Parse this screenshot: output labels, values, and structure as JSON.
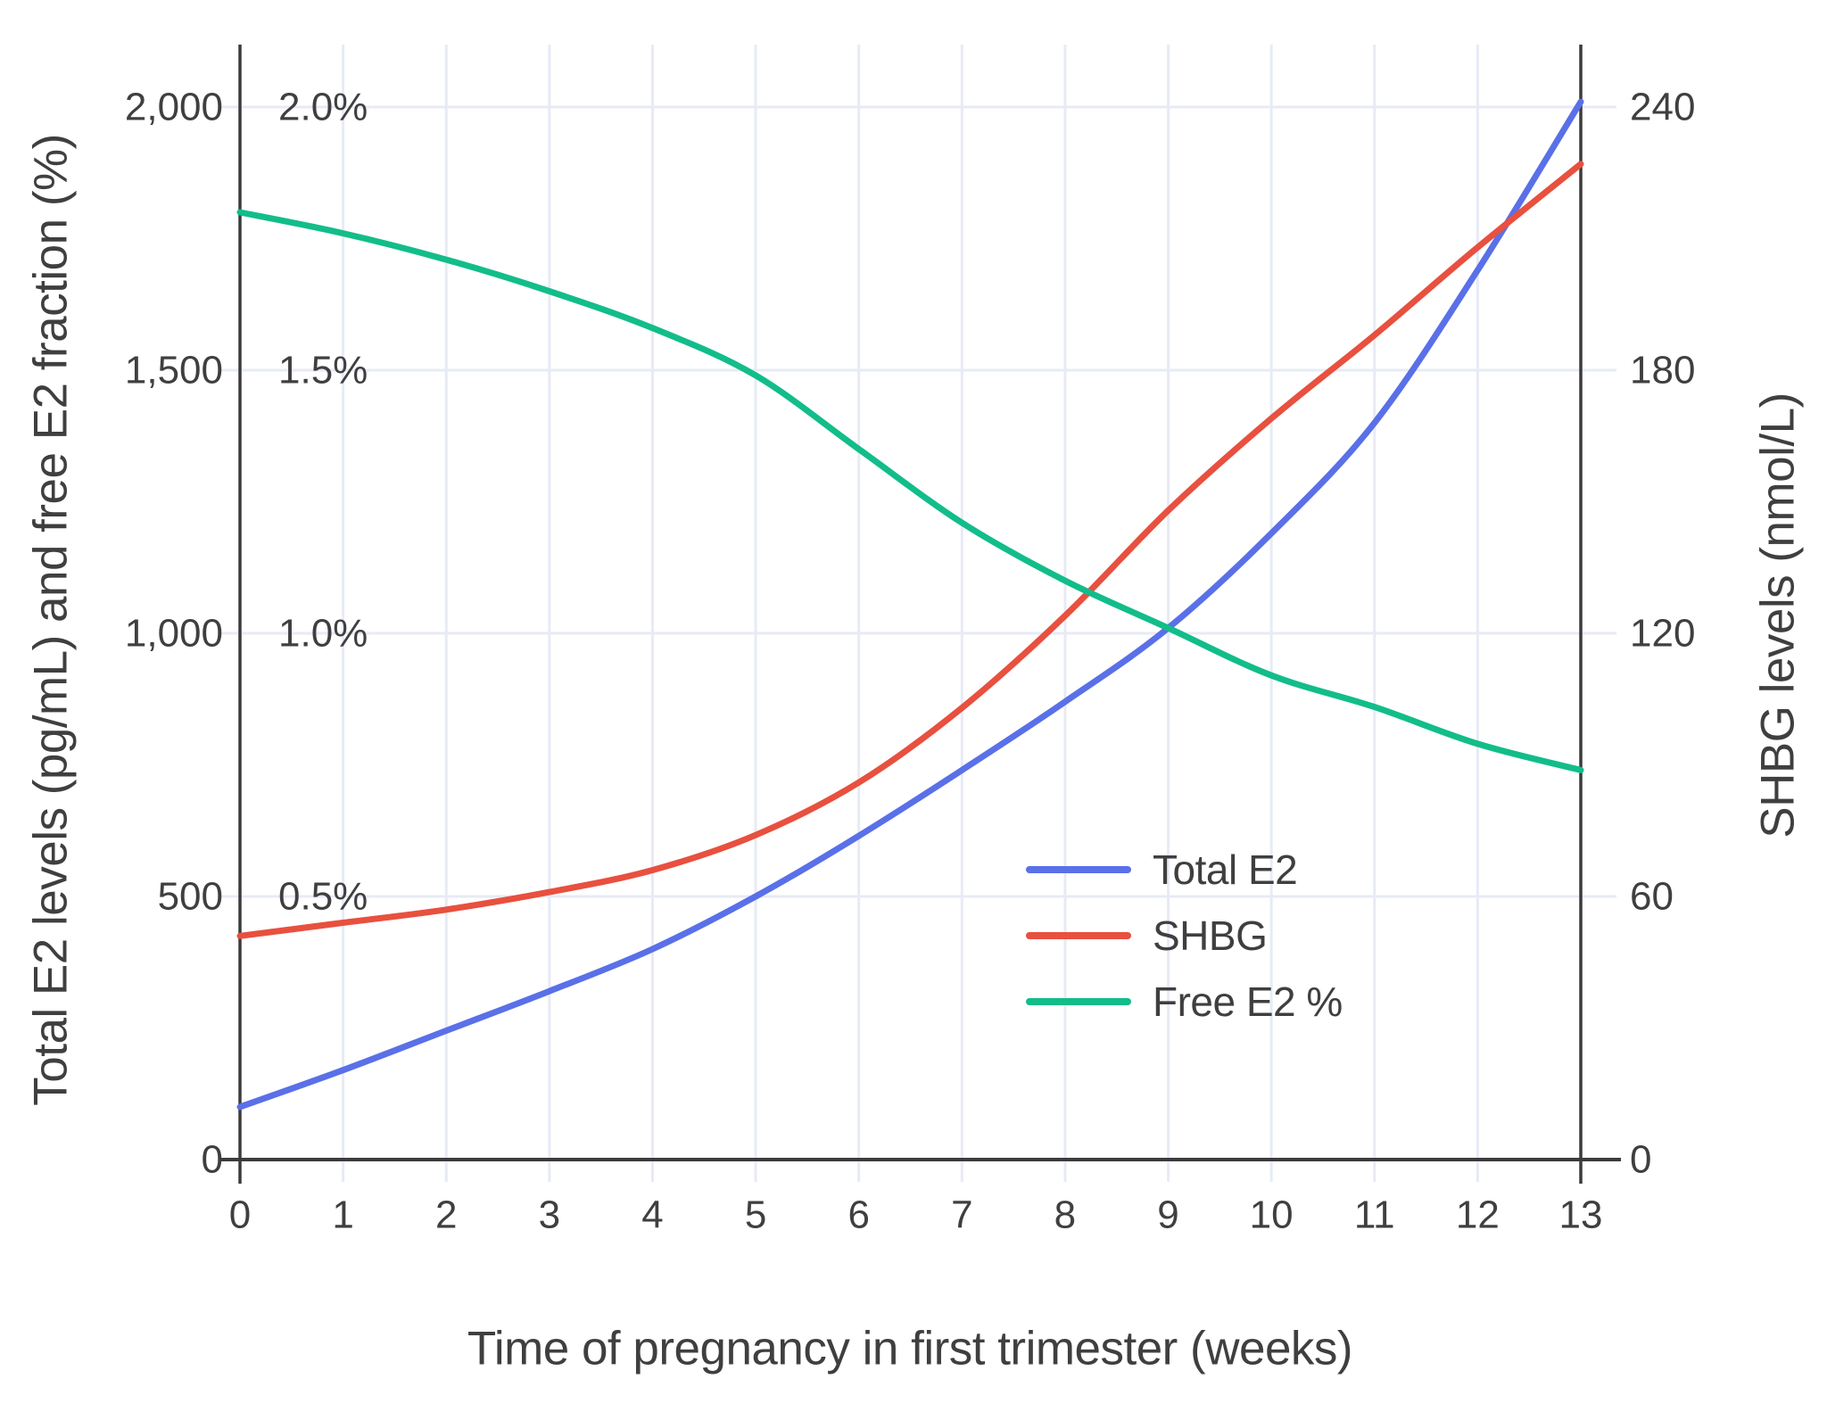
{
  "chart_data": {
    "type": "line",
    "title": "",
    "xlabel": "Time of pregnancy in first trimester (weeks)",
    "ylabel_left": "Total E2 levels (pg/mL) and free E2 fraction (%)",
    "ylabel_right": "SHBG levels (nmol/L)",
    "x": [
      0,
      1,
      2,
      3,
      4,
      5,
      6,
      7,
      8,
      9,
      10,
      11,
      12,
      13
    ],
    "x_tick_labels": [
      "0",
      "1",
      "2",
      "3",
      "4",
      "5",
      "6",
      "7",
      "8",
      "9",
      "10",
      "11",
      "12",
      "13"
    ],
    "left_axis": {
      "range": [
        0,
        2000
      ],
      "tick_values": [
        0,
        500,
        1000,
        1500,
        2000
      ],
      "tick_labels": [
        "0",
        "500",
        "1,000",
        "1,500",
        "2,000"
      ]
    },
    "pct_axis_labels": [
      {
        "label": "0.5%",
        "value": 500
      },
      {
        "label": "1.0%",
        "value": 1000
      },
      {
        "label": "1.5%",
        "value": 1500
      },
      {
        "label": "2.0%",
        "value": 2000
      }
    ],
    "right_axis": {
      "range": [
        0,
        240
      ],
      "tick_values": [
        0,
        60,
        120,
        180,
        240
      ],
      "tick_labels": [
        "0",
        "60",
        "120",
        "180",
        "240"
      ]
    },
    "grid": true,
    "legend_position": "inside-middle-right",
    "series": [
      {
        "name": "Total E2",
        "axis": "left",
        "color": "#5a70e8",
        "values": [
          100,
          170,
          245,
          320,
          400,
          500,
          615,
          740,
          870,
          1010,
          1190,
          1400,
          1690,
          2010
        ]
      },
      {
        "name": "SHBG",
        "axis": "right",
        "color": "#e8503f",
        "values": [
          51,
          54,
          57,
          61,
          66,
          74,
          86,
          103,
          124,
          148,
          169,
          188,
          208,
          227
        ]
      },
      {
        "name": "Free E2 %",
        "axis": "pct",
        "color": "#12bd8a",
        "values": [
          1.8,
          1.76,
          1.71,
          1.65,
          1.58,
          1.49,
          1.35,
          1.21,
          1.1,
          1.01,
          0.92,
          0.86,
          0.79,
          0.74
        ]
      }
    ]
  },
  "colors": {
    "grid": "#e7ebf5",
    "axis_line": "#3b3b3b",
    "text": "#3f3f3f",
    "background": "#ffffff"
  }
}
